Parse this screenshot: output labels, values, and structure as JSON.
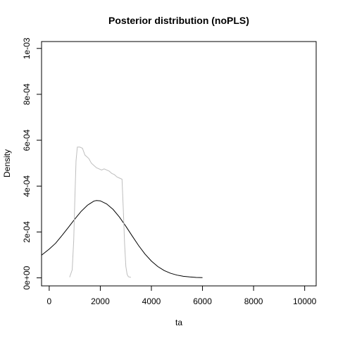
{
  "chart_data": {
    "type": "line",
    "title": "Posterior distribution (noPLS)",
    "xlabel": "ta",
    "ylabel": "Density",
    "xlim": [
      -300,
      10450
    ],
    "ylim": [
      -3.5e-05,
      0.00103
    ],
    "x_ticks": [
      0,
      2000,
      4000,
      6000,
      8000,
      10000
    ],
    "x_tick_labels": [
      "0",
      "2000",
      "4000",
      "6000",
      "8000",
      "10000"
    ],
    "y_ticks": [
      0,
      0.0002,
      0.0004,
      0.0006,
      0.0008,
      0.001
    ],
    "y_tick_labels": [
      "0e+00",
      "2e-04",
      "4e-04",
      "6e-04",
      "8e-04",
      "1e-03"
    ],
    "grid": false,
    "series": [
      {
        "color": "#000000",
        "x": [
          -300,
          0,
          250,
          500,
          750,
          1000,
          1250,
          1500,
          1750,
          1850,
          2000,
          2250,
          2500,
          2750,
          3000,
          3250,
          3500,
          3750,
          4000,
          4250,
          4500,
          4750,
          5000,
          5250,
          5500,
          5750,
          6000
        ],
        "y": [
          9.9e-05,
          0.0001253,
          0.0001508,
          0.0001847,
          0.0002201,
          0.0002559,
          0.0002898,
          0.0003169,
          0.0003347,
          0.000337,
          0.0003357,
          0.0003221,
          0.0002983,
          0.0002649,
          0.0002249,
          0.0001824,
          0.0001407,
          0.0001037,
          7.32e-05,
          4.94e-05,
          3.2e-05,
          2e-05,
          1.2e-05,
          7e-06,
          4e-06,
          2e-06,
          1e-06
        ]
      },
      {
        "color": "#bebebe",
        "x": [
          800,
          900,
          960,
          1000,
          1050,
          1100,
          1150,
          1200,
          1300,
          1400,
          1450,
          1550,
          1650,
          1750,
          1850,
          1950,
          2050,
          2150,
          2250,
          2350,
          2450,
          2550,
          2650,
          2750,
          2850,
          2900,
          2950,
          3000,
          3050,
          3100,
          3200
        ],
        "y": [
          3e-06,
          3.5e-05,
          0.000165,
          0.00033,
          0.00051,
          0.00057,
          0.00057,
          0.00057,
          0.000565,
          0.000535,
          0.00053,
          0.00052,
          0.0005,
          0.00049,
          0.00048,
          0.000475,
          0.00047,
          0.000475,
          0.00047,
          0.000465,
          0.000455,
          0.00045,
          0.00044,
          0.000435,
          0.00043,
          0.0003,
          0.00015,
          5e-05,
          1.5e-05,
          5e-06,
          2e-06
        ]
      }
    ]
  }
}
